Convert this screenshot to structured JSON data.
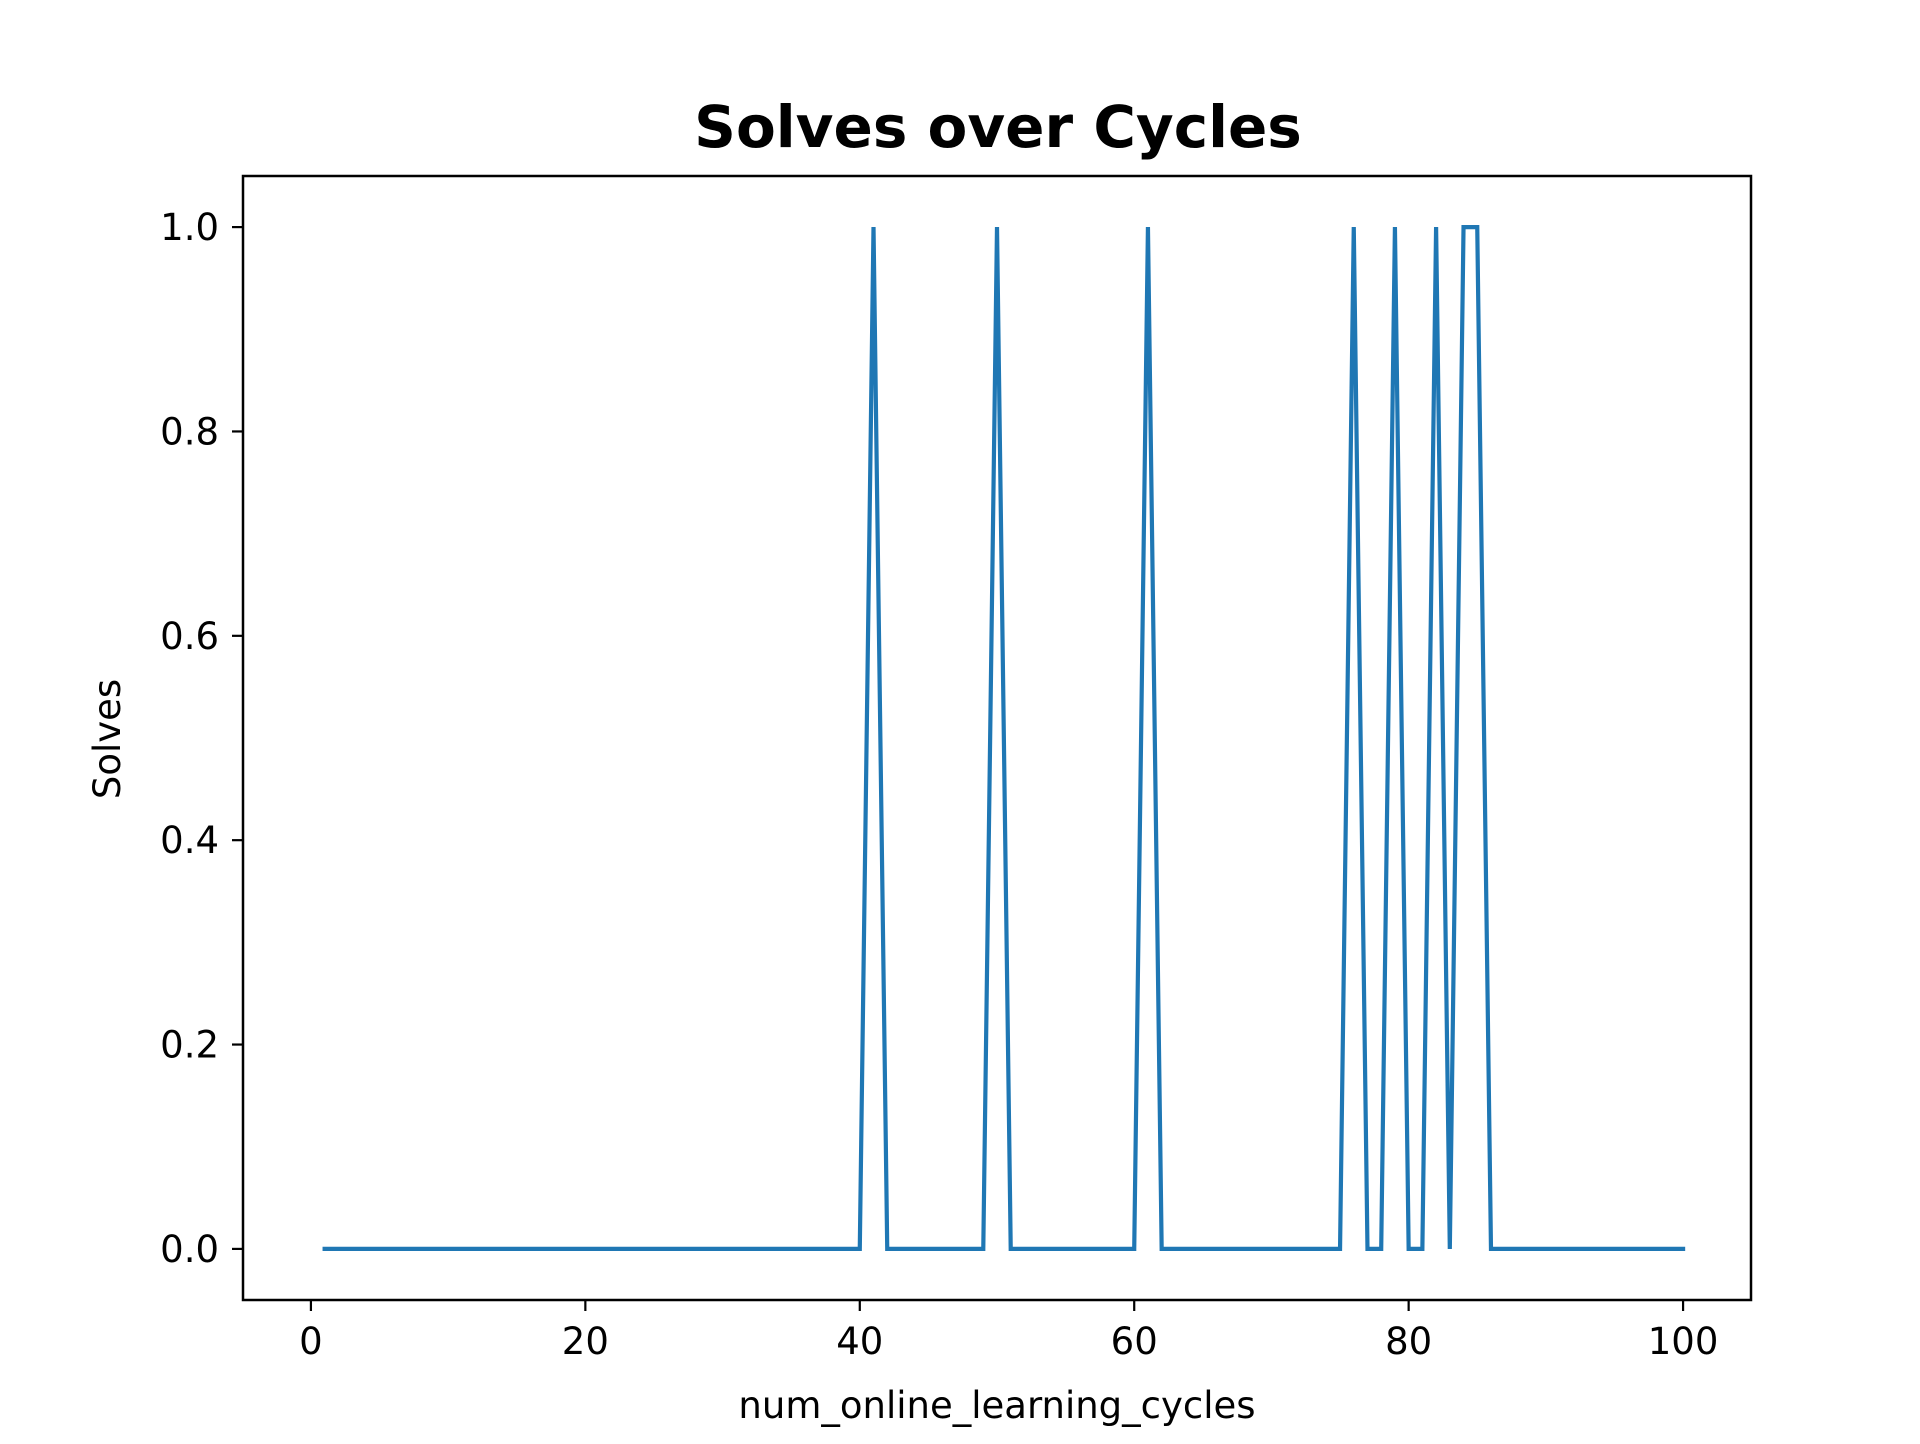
{
  "chart_data": {
    "type": "line",
    "title": "Solves over Cycles",
    "xlabel": "num_online_learning_cycles",
    "ylabel": "Solves",
    "xlim": [
      -4.95,
      104.95
    ],
    "ylim": [
      -0.05,
      1.05
    ],
    "xticks": [
      0,
      20,
      40,
      60,
      80,
      100
    ],
    "xtick_labels": [
      "0",
      "20",
      "40",
      "60",
      "80",
      "100"
    ],
    "yticks": [
      0.0,
      0.2,
      0.4,
      0.6,
      0.8,
      1.0
    ],
    "ytick_labels": [
      "0.0",
      "0.2",
      "0.4",
      "0.6",
      "0.8",
      "1.0"
    ],
    "grid": false,
    "legend": "none",
    "series": [
      {
        "color": "#1f77b4",
        "x": [
          1,
          2,
          3,
          4,
          5,
          6,
          7,
          8,
          9,
          10,
          11,
          12,
          13,
          14,
          15,
          16,
          17,
          18,
          19,
          20,
          21,
          22,
          23,
          24,
          25,
          26,
          27,
          28,
          29,
          30,
          31,
          32,
          33,
          34,
          35,
          36,
          37,
          38,
          39,
          40,
          41,
          42,
          43,
          44,
          45,
          46,
          47,
          48,
          49,
          50,
          51,
          52,
          53,
          54,
          55,
          56,
          57,
          58,
          59,
          60,
          61,
          62,
          63,
          64,
          65,
          66,
          67,
          68,
          69,
          70,
          71,
          72,
          73,
          74,
          75,
          76,
          77,
          78,
          79,
          80,
          81,
          82,
          83,
          84,
          85,
          86,
          87,
          88,
          89,
          90,
          91,
          92,
          93,
          94,
          95,
          96,
          97,
          98,
          99,
          100
        ],
        "y": [
          0,
          0,
          0,
          0,
          0,
          0,
          0,
          0,
          0,
          0,
          0,
          0,
          0,
          0,
          0,
          0,
          0,
          0,
          0,
          0,
          0,
          0,
          0,
          0,
          0,
          0,
          0,
          0,
          0,
          0,
          0,
          0,
          0,
          0,
          0,
          0,
          0,
          0,
          0,
          0,
          1,
          0,
          0,
          0,
          0,
          0,
          0,
          0,
          0,
          1,
          0,
          0,
          0,
          0,
          0,
          0,
          0,
          0,
          0,
          0,
          1,
          0,
          0,
          0,
          0,
          0,
          0,
          0,
          0,
          0,
          0,
          0,
          0,
          0,
          0,
          1,
          0,
          0,
          1,
          0,
          0,
          1,
          0,
          1,
          1,
          0,
          0,
          0,
          0,
          0,
          0,
          0,
          0,
          0,
          0,
          0,
          0,
          0,
          0,
          0
        ]
      }
    ]
  }
}
